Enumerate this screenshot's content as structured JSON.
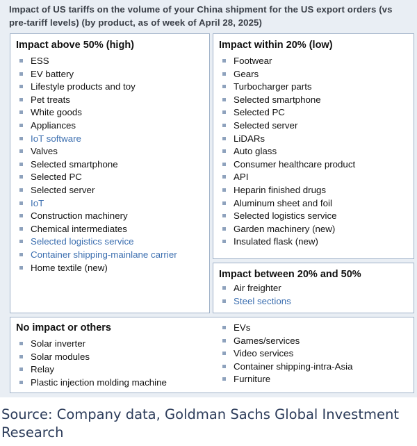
{
  "title": "Impact of US tariffs on the volume of your China shipment for the US export orders (vs pre-tariff levels) (by product, as of week of April 28, 2025)",
  "colors": {
    "background": "#e9eef4",
    "panel_border": "#9fb1c8",
    "bullet": "#8ea2bd",
    "highlight_text": "#3c6fb0",
    "source_text": "#2c3c5a"
  },
  "panels": {
    "high": {
      "heading": "Impact above 50% (high)",
      "items": [
        {
          "text": "ESS",
          "highlight": false
        },
        {
          "text": "EV battery",
          "highlight": false
        },
        {
          "text": "Lifestyle products and toy",
          "highlight": false
        },
        {
          "text": "Pet treats",
          "highlight": false
        },
        {
          "text": "White goods",
          "highlight": false
        },
        {
          "text": "Appliances",
          "highlight": false
        },
        {
          "text": "IoT software",
          "highlight": true
        },
        {
          "text": "Valves",
          "highlight": false
        },
        {
          "text": "Selected smartphone",
          "highlight": false
        },
        {
          "text": "Selected PC",
          "highlight": false
        },
        {
          "text": "Selected server",
          "highlight": false
        },
        {
          "text": "IoT",
          "highlight": true
        },
        {
          "text": "Construction machinery",
          "highlight": false
        },
        {
          "text": "Chemical intermediates",
          "highlight": false
        },
        {
          "text": "Selected logistics service",
          "highlight": true
        },
        {
          "text": "Container shipping-mainlane carrier",
          "highlight": true
        },
        {
          "text": "Home textile (new)",
          "highlight": false
        }
      ]
    },
    "low": {
      "heading": "Impact within 20% (low)",
      "items": [
        {
          "text": "Footwear",
          "highlight": false
        },
        {
          "text": "Gears",
          "highlight": false
        },
        {
          "text": "Turbocharger parts",
          "highlight": false
        },
        {
          "text": "Selected smartphone",
          "highlight": false
        },
        {
          "text": "Selected PC",
          "highlight": false
        },
        {
          "text": "Selected server",
          "highlight": false
        },
        {
          "text": "LiDARs",
          "highlight": false
        },
        {
          "text": "Auto glass",
          "highlight": false
        },
        {
          "text": "Consumer healthcare product",
          "highlight": false
        },
        {
          "text": "API",
          "highlight": false
        },
        {
          "text": "Heparin finished drugs",
          "highlight": false
        },
        {
          "text": "Aluminum sheet and foil",
          "highlight": false
        },
        {
          "text": "Selected logistics service",
          "highlight": false
        },
        {
          "text": "Garden machinery (new)",
          "highlight": false
        },
        {
          "text": "Insulated flask (new)",
          "highlight": false
        }
      ]
    },
    "mid": {
      "heading": "Impact between 20% and 50%",
      "items": [
        {
          "text": "Air freighter",
          "highlight": false
        },
        {
          "text": "Steel sections",
          "highlight": true
        }
      ]
    },
    "none": {
      "heading": "No impact or others",
      "items_left": [
        {
          "text": "Solar inverter",
          "highlight": false
        },
        {
          "text": "Solar modules",
          "highlight": false
        },
        {
          "text": "Relay",
          "highlight": false
        },
        {
          "text": "Plastic injection molding machine",
          "highlight": false
        }
      ],
      "items_right": [
        {
          "text": "EVs",
          "highlight": false
        },
        {
          "text": "Games/services",
          "highlight": false
        },
        {
          "text": "Video services",
          "highlight": false
        },
        {
          "text": "Container shipping-intra-Asia",
          "highlight": false
        },
        {
          "text": "Furniture",
          "highlight": false
        }
      ]
    }
  },
  "source": "Source: Company data, Goldman Sachs Global Investment Research"
}
